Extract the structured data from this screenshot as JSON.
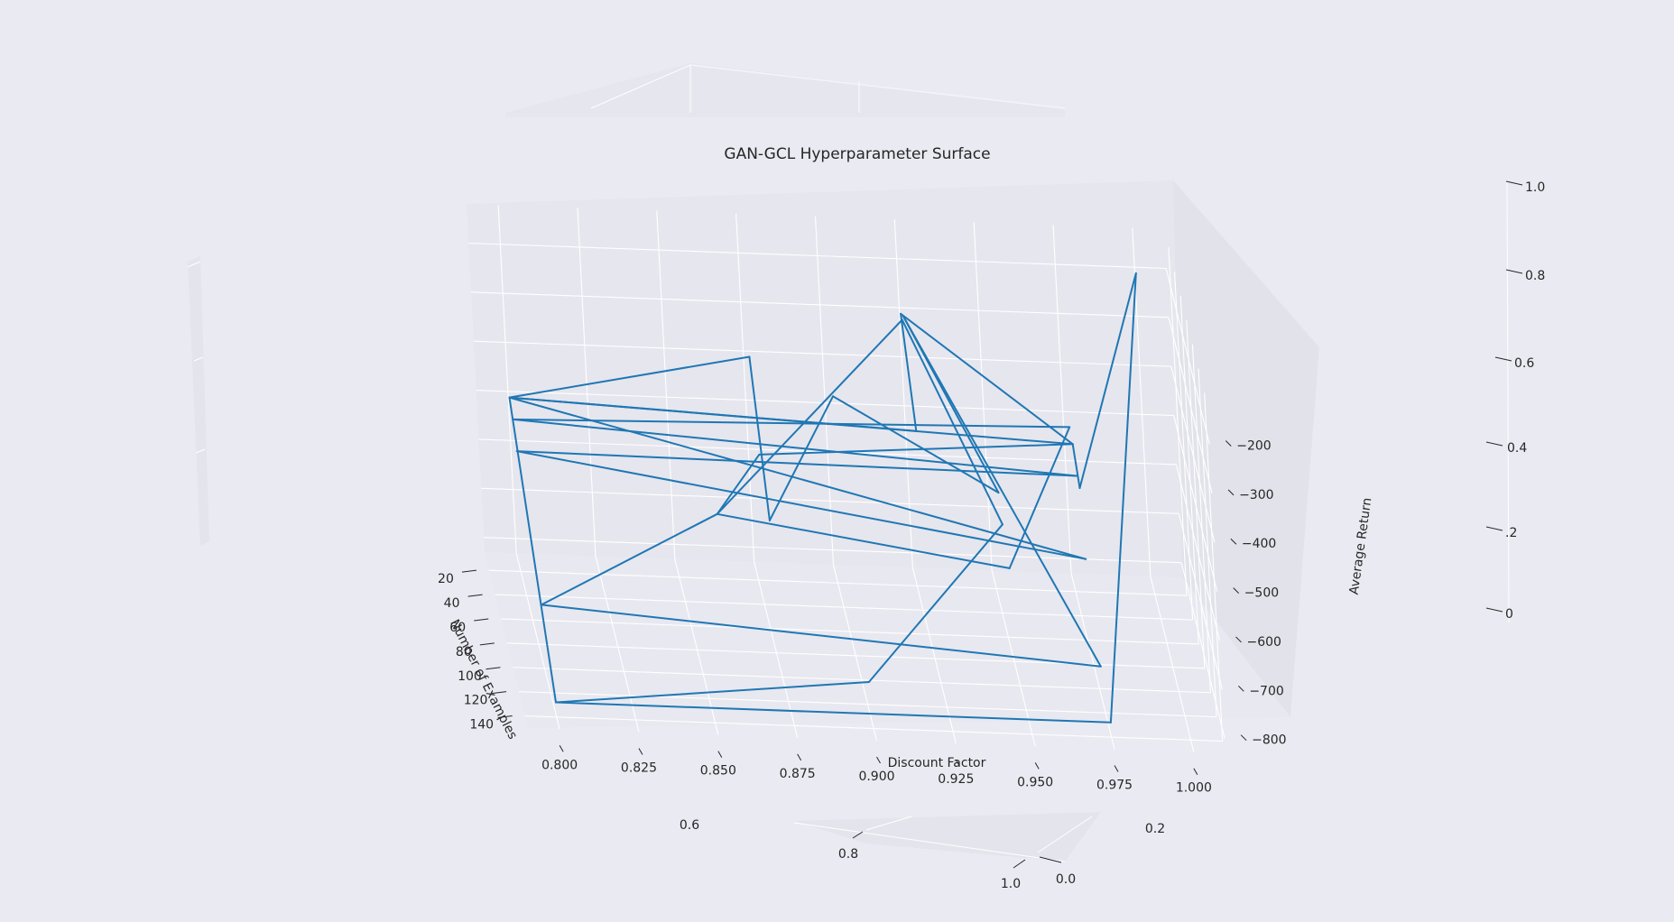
{
  "chart_data": {
    "type": "line3d",
    "title": "GAN-GCL Hyperparameter Surface",
    "xlabel": "Discount Factor",
    "ylabel": "Number of Examples",
    "zlabel": "Average Return",
    "x_ticks": [
      "0.800",
      "0.825",
      "0.850",
      "0.875",
      "0.900",
      "0.925",
      "0.950",
      "0.975",
      "1.000"
    ],
    "y_ticks": [
      "20",
      "40",
      "60",
      "80",
      "100",
      "120",
      "140"
    ],
    "z_ticks": [
      "−200",
      "−300",
      "−400",
      "−500",
      "−600",
      "−700",
      "−800"
    ],
    "xlim": [
      0.79,
      1.01
    ],
    "ylim": [
      5,
      150
    ],
    "zlim": [
      -830,
      -120
    ],
    "series_color": "#1f77b4",
    "points": [
      {
        "x": 0.8,
        "y": 10,
        "z": -500
      },
      {
        "x": 0.875,
        "y": 30,
        "z": -350
      },
      {
        "x": 0.875,
        "y": 80,
        "z": -560
      },
      {
        "x": 0.9,
        "y": 40,
        "z": -400
      },
      {
        "x": 0.95,
        "y": 50,
        "z": -560
      },
      {
        "x": 0.925,
        "y": 20,
        "z": -280
      },
      {
        "x": 0.975,
        "y": 110,
        "z": -760
      },
      {
        "x": 0.8,
        "y": 100,
        "z": -700
      },
      {
        "x": 0.86,
        "y": 60,
        "z": -600
      },
      {
        "x": 0.95,
        "y": 80,
        "z": -640
      },
      {
        "x": 0.975,
        "y": 30,
        "z": -470
      },
      {
        "x": 0.8,
        "y": 20,
        "z": -520
      },
      {
        "x": 0.975,
        "y": 50,
        "z": -520
      },
      {
        "x": 0.8,
        "y": 30,
        "z": -560
      },
      {
        "x": 0.975,
        "y": 70,
        "z": -640
      },
      {
        "x": 0.8,
        "y": 10,
        "z": -500
      },
      {
        "x": 0.975,
        "y": 40,
        "z": -480
      },
      {
        "x": 0.925,
        "y": 10,
        "z": -300
      },
      {
        "x": 0.925,
        "y": 50,
        "z": -440
      },
      {
        "x": 0.8,
        "y": 10,
        "z": -500
      },
      {
        "x": 0.8,
        "y": 140,
        "z": -800
      },
      {
        "x": 0.9,
        "y": 130,
        "z": -760
      },
      {
        "x": 0.95,
        "y": 60,
        "z": -600
      },
      {
        "x": 0.925,
        "y": 15,
        "z": -300
      },
      {
        "x": 0.86,
        "y": 60,
        "z": -600
      },
      {
        "x": 0.875,
        "y": 50,
        "z": -500
      },
      {
        "x": 0.975,
        "y": 40,
        "z": -480
      },
      {
        "x": 0.975,
        "y": 60,
        "z": -520
      },
      {
        "x": 1.0,
        "y": 10,
        "z": -200
      },
      {
        "x": 0.975,
        "y": 140,
        "z": -800
      },
      {
        "x": 0.8,
        "y": 140,
        "z": -800
      }
    ]
  },
  "residual_axes": {
    "right_ticks": [
      "1.0",
      "0.8",
      "0.6",
      "0.4",
      ".2",
      "0"
    ],
    "bottom_ticks": [
      "0.6",
      "0.8",
      "1.0",
      "0.0",
      "0.2"
    ]
  }
}
